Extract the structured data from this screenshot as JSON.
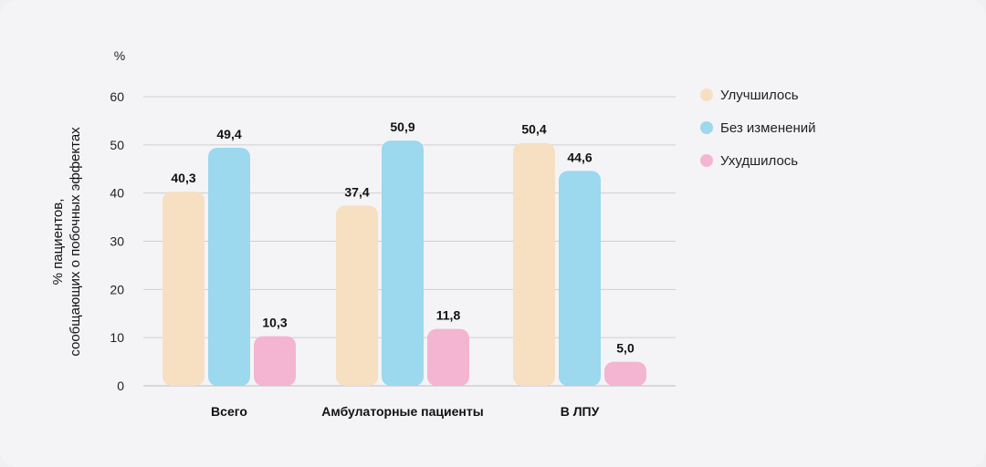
{
  "chart_data": {
    "type": "bar",
    "unit_label": "%",
    "ylabel_lines": [
      "% пациентов,",
      "сообщающих о побочных эффектах"
    ],
    "xlabel": "",
    "ylim": [
      0,
      60
    ],
    "yticks": [
      0,
      10,
      20,
      30,
      40,
      50,
      60
    ],
    "grid": true,
    "legend_position": "right",
    "categories": [
      "Всего",
      "Амбулаторные пациенты",
      "В ЛПУ"
    ],
    "series": [
      {
        "name": "Улучшилось",
        "color": "#f7dfc2",
        "values": [
          40.3,
          37.4,
          50.4
        ],
        "labels": [
          "40,3",
          "37,4",
          "50,4"
        ]
      },
      {
        "name": "Без изменений",
        "color": "#9cd8ee",
        "values": [
          49.4,
          50.9,
          44.6
        ],
        "labels": [
          "49,4",
          "50,9",
          "44,6"
        ]
      },
      {
        "name": "Ухудшилось",
        "color": "#f3b5d1",
        "values": [
          10.3,
          11.8,
          5.0
        ],
        "labels": [
          "10,3",
          "11,8",
          "5,0"
        ]
      }
    ]
  }
}
